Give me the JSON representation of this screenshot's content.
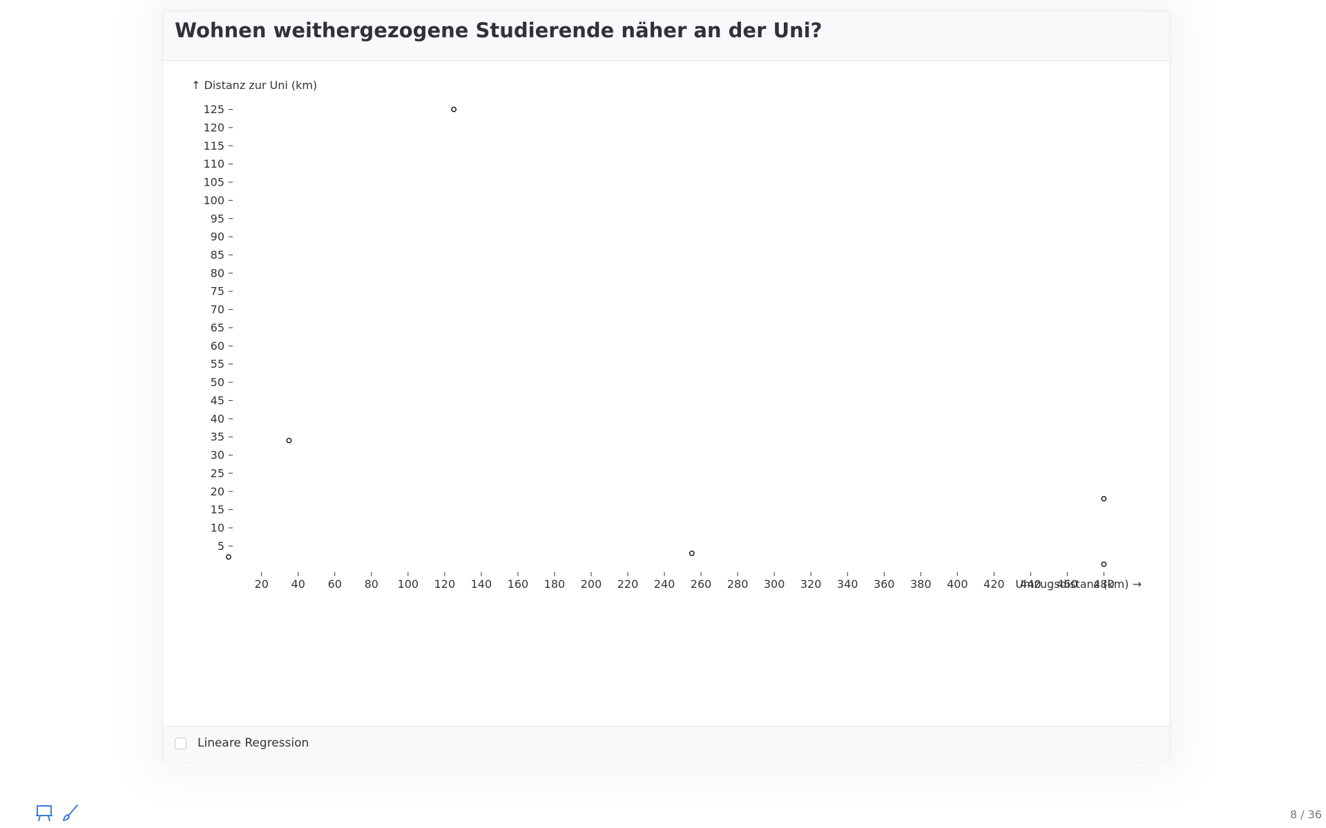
{
  "slide": {
    "title": "Wohnen weithergezogene Studierende näher an der Uni?",
    "page_number": "8 / 36"
  },
  "controls": {
    "regression_label": "Lineare Regression",
    "regression_checked": false
  },
  "toolbar": {
    "icons": [
      "presentation-icon",
      "brush-icon"
    ],
    "accent_color": "#3b7dd8"
  },
  "chart_data": {
    "type": "scatter",
    "title": "",
    "xlabel": "Umzugsdistanz (km) →",
    "ylabel": "↑ Distanz zur Uni (km)",
    "xlim": [
      2,
      484
    ],
    "ylim": [
      -1,
      127
    ],
    "x_ticks": [
      20,
      40,
      60,
      80,
      100,
      120,
      140,
      160,
      180,
      200,
      220,
      240,
      260,
      280,
      300,
      320,
      340,
      360,
      380,
      400,
      420,
      440,
      460,
      480
    ],
    "y_ticks": [
      5,
      10,
      15,
      20,
      25,
      30,
      35,
      40,
      45,
      50,
      55,
      60,
      65,
      70,
      75,
      80,
      85,
      90,
      95,
      100,
      105,
      110,
      115,
      120,
      125
    ],
    "points": [
      {
        "x": 2,
        "y": 2
      },
      {
        "x": 35,
        "y": 34
      },
      {
        "x": 125,
        "y": 125
      },
      {
        "x": 255,
        "y": 3
      },
      {
        "x": 480,
        "y": 18
      },
      {
        "x": 480,
        "y": 0
      }
    ],
    "grid": false,
    "marker": "hollow-circle",
    "mark_color": "#1a1a1a"
  }
}
